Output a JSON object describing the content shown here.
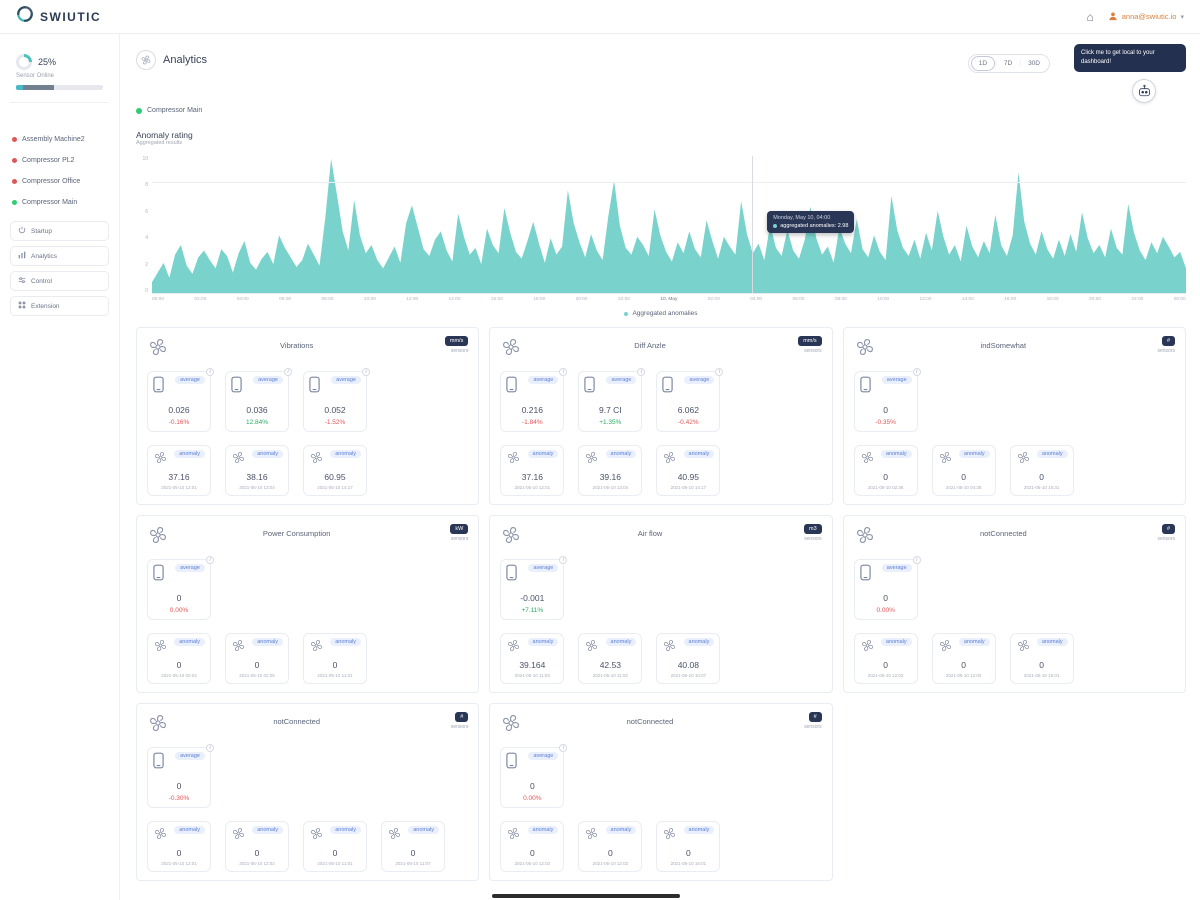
{
  "topbar": {
    "logo_text": "SWIUTIC",
    "user_label": "anna@swiutic.io"
  },
  "assistant": {
    "tooltip": "Click me to get local to your dashboard!"
  },
  "sidebar": {
    "gauge_percent": "25%",
    "gauge_label": "Sensor Online",
    "machines": [
      {
        "label": "Assembly Machine2",
        "status_color": "#e05656"
      },
      {
        "label": "Compressor PL2",
        "status_color": "#e05656"
      },
      {
        "label": "Compressor Office",
        "status_color": "#e05656"
      },
      {
        "label": "Compressor Main",
        "status_color": "#2ecc71"
      }
    ],
    "nav": [
      {
        "label": "Startup",
        "icon": "power-icon"
      },
      {
        "label": "Analytics",
        "icon": "chart-icon"
      },
      {
        "label": "Control",
        "icon": "sliders-icon"
      },
      {
        "label": "Extension",
        "icon": "puzzle-icon"
      }
    ]
  },
  "header": {
    "title": "Analytics",
    "legend_label": "Compressor Main",
    "range_buttons": [
      "1D",
      "7D",
      "30D"
    ],
    "active_range": "1D"
  },
  "labels": {
    "average_pill": "average",
    "anomaly_pill": "anomaly",
    "sensors": "sensors"
  },
  "colors": {
    "teal": "#79d2cc",
    "green": "#27ae60",
    "red": "#e05656",
    "navy": "#2a3655"
  },
  "chart_data": {
    "type": "area",
    "title": "Anomaly rating",
    "subtitle": "Aggregated results",
    "series_name": "Aggregated anomalies",
    "color": "#79d2cc",
    "ylim": [
      0,
      10
    ],
    "yticks": [
      0,
      2,
      4,
      6,
      8,
      10
    ],
    "xticks": [
      "00:00",
      "02:00",
      "04:00",
      "06:00",
      "08:00",
      "10:00",
      "12:00",
      "14:00",
      "16:00",
      "18:00",
      "20:00",
      "22:00",
      "10. May",
      "02:00",
      "04:00",
      "06:00",
      "08:00",
      "10:00",
      "12:00",
      "14:00",
      "16:00",
      "18:00",
      "20:00",
      "22:00",
      "00:00"
    ],
    "tooltip": {
      "title": "Monday, May 10, 04:00",
      "label": "aggregated anomalies",
      "value": "2.98"
    },
    "values": [
      0.8,
      1.5,
      2.2,
      1.1,
      2.8,
      3.5,
      2.0,
      1.4,
      2.6,
      3.1,
      2.4,
      1.8,
      3.2,
      2.7,
      1.5,
      2.9,
      3.8,
      2.2,
      1.7,
      2.5,
      3.0,
      2.1,
      4.2,
      3.3,
      2.6,
      1.9,
      2.4,
      3.6,
      2.8,
      2.0,
      5.5,
      9.8,
      7.2,
      4.5,
      3.1,
      6.8,
      4.2,
      2.9,
      3.5,
      2.4,
      1.8,
      2.6,
      3.4,
      2.2,
      5.1,
      6.4,
      4.8,
      3.2,
      2.7,
      3.9,
      4.5,
      3.1,
      2.3,
      5.8,
      4.1,
      2.8,
      3.3,
      2.1,
      4.7,
      3.5,
      2.9,
      6.2,
      4.4,
      3.0,
      2.5,
      3.8,
      5.2,
      3.6,
      2.2,
      4.0,
      2.8,
      3.4,
      7.5,
      5.1,
      3.7,
      2.6,
      4.3,
      3.1,
      2.4,
      5.6,
      8.2,
      4.9,
      3.3,
      2.8,
      4.1,
      3.5,
      2.7,
      6.1,
      4.2,
      3.0,
      2.3,
      3.7,
      2.9,
      4.5,
      3.2,
      2.6,
      5.3,
      3.8,
      2.5,
      4.1,
      3.4,
      2.8,
      6.7,
      4.3,
      2.9,
      3.6,
      2.4,
      5.0,
      3.3,
      2.7,
      4.6,
      3.1,
      2.5,
      3.9,
      6.3,
      4.0,
      2.8,
      3.4,
      2.2,
      4.8,
      3.6,
      2.9,
      5.4,
      3.2,
      2.6,
      4.2,
      3.0,
      2.4,
      7.1,
      4.6,
      3.3,
      2.7,
      3.9,
      2.5,
      4.4,
      3.1,
      6.0,
      4.1,
      2.8,
      3.5,
      2.3,
      4.9,
      3.4,
      2.6,
      3.8,
      2.9,
      5.7,
      3.5,
      2.7,
      4.2,
      8.8,
      5.2,
      3.6,
      2.8,
      4.5,
      3.2,
      2.5,
      3.9,
      2.7,
      4.3,
      3.0,
      5.9,
      4.0,
      2.9,
      3.5,
      2.6,
      4.7,
      3.3,
      2.8,
      6.5,
      4.4,
      3.1,
      2.4,
      3.7,
      2.9,
      4.1,
      3.4,
      2.6,
      3.0,
      1.8
    ]
  },
  "cards": [
    {
      "title": "Vibrations",
      "badge": "mm/s",
      "averages": [
        {
          "value": "0.026",
          "percent": "-0.16%",
          "trend": "down"
        },
        {
          "value": "0.036",
          "percent": "12.84%",
          "trend": "up"
        },
        {
          "value": "0.052",
          "percent": "-1.52%",
          "trend": "down"
        }
      ],
      "anomalies": [
        {
          "value": "37.16",
          "date": "2021-05-10 12:01"
        },
        {
          "value": "38.16",
          "date": "2021-05-10 13:04"
        },
        {
          "value": "60.95",
          "date": "2021-05-10 14:17"
        }
      ]
    },
    {
      "title": "Diff Anzle",
      "badge": "mm/s",
      "averages": [
        {
          "value": "0.216",
          "percent": "-1.84%",
          "trend": "down"
        },
        {
          "value": "9.7 CI",
          "percent": "+1.35%",
          "trend": "up"
        },
        {
          "value": "6.062",
          "percent": "-0.42%",
          "trend": "down"
        }
      ],
      "anomalies": [
        {
          "value": "37.16",
          "date": "2021-05-10 12:01"
        },
        {
          "value": "39.16",
          "date": "2021-05-10 13:04"
        },
        {
          "value": "40.95",
          "date": "2021-05-10 14:17"
        }
      ]
    },
    {
      "title": "indSomewhat",
      "badge": "#",
      "averages": [
        {
          "value": "0",
          "percent": "-0.35%",
          "trend": "down"
        }
      ],
      "anomalies": [
        {
          "value": "0",
          "date": "2021-05-10 02:36"
        },
        {
          "value": "0",
          "date": "2021-05-10 04:38"
        },
        {
          "value": "0",
          "date": "2021-05-10 16:31"
        }
      ]
    },
    {
      "title": "Power Consumption",
      "badge": "kW",
      "averages": [
        {
          "value": "0",
          "percent": "0.00%",
          "trend": "down"
        }
      ],
      "anomalies": [
        {
          "value": "0",
          "date": "2021-05-10 02:04"
        },
        {
          "value": "0",
          "date": "2021-05-10 02:05"
        },
        {
          "value": "0",
          "date": "2021-05-10 11:01"
        }
      ]
    },
    {
      "title": "Air flow",
      "badge": "m3",
      "averages": [
        {
          "value": "-0.001",
          "percent": "+7.11%",
          "trend": "up"
        }
      ],
      "anomalies": [
        {
          "value": "39.164",
          "date": "2021-05-10 11:03"
        },
        {
          "value": "42.53",
          "date": "2021-05-10 11:02"
        },
        {
          "value": "40.08",
          "date": "2021-05-10 10:07"
        }
      ]
    },
    {
      "title": "notConnected",
      "badge": "#",
      "averages": [
        {
          "value": "0",
          "percent": "0.00%",
          "trend": "down"
        }
      ],
      "anomalies": [
        {
          "value": "0",
          "date": "2021-05-10 12:02"
        },
        {
          "value": "0",
          "date": "2021-05-10 12:02"
        },
        {
          "value": "0",
          "date": "2021-05-10 16:01"
        }
      ]
    },
    {
      "title": "notConnected",
      "badge": "#",
      "averages": [
        {
          "value": "0",
          "percent": "-0.30%",
          "trend": "down"
        }
      ],
      "anomalies": [
        {
          "value": "0",
          "date": "2021-05-10 12:01"
        },
        {
          "value": "0",
          "date": "2021-05-10 12:02"
        },
        {
          "value": "0",
          "date": "2021-05-10 11:01"
        },
        {
          "value": "0",
          "date": "2021-05-10 11:07"
        }
      ]
    },
    {
      "title": "notConnected",
      "badge": "#",
      "averages": [
        {
          "value": "0",
          "percent": "0.00%",
          "trend": "down"
        }
      ],
      "anomalies": [
        {
          "value": "0",
          "date": "2021-05-10 12:02"
        },
        {
          "value": "0",
          "date": "2021-05-10 12:02"
        },
        {
          "value": "0",
          "date": "2021-05-10 16:01"
        }
      ]
    }
  ]
}
